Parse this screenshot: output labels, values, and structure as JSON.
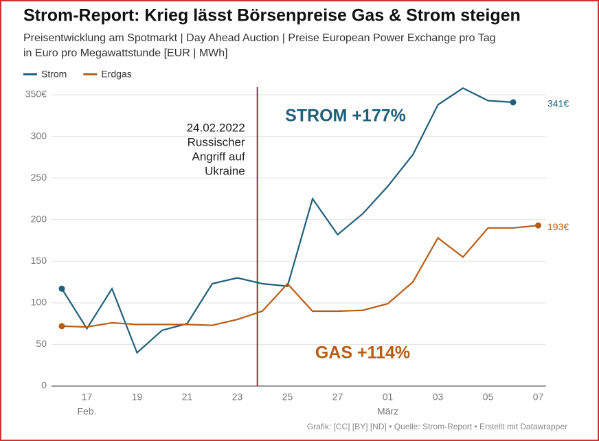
{
  "chart_data": {
    "type": "line",
    "title": "Strom-Report: Krieg lässt Börsenpreise Gas & Strom steigen",
    "subtitle": [
      "Preisentwicklung am Spotmarkt | Day Ahead Auction | Preise European Power Exchange pro Tag",
      "in Euro pro Megawattstunde [EUR | MWh]"
    ],
    "categories": [
      null,
      "17",
      null,
      "19",
      null,
      "21",
      null,
      "23",
      null,
      "25",
      null,
      "27",
      null,
      "01",
      null,
      "03",
      null,
      "05",
      null,
      "07"
    ],
    "month_labels": [
      "Feb.",
      "März"
    ],
    "series": [
      {
        "name": "Strom",
        "color": "#1f5f7a",
        "values": [
          117,
          69,
          117,
          40,
          67,
          75,
          123,
          130,
          123,
          120,
          225,
          182,
          207,
          240,
          278,
          338,
          358,
          343,
          341,
          null
        ],
        "value_labels": [
          null,
          null,
          null,
          null,
          null,
          null,
          null,
          null,
          null,
          null,
          null,
          null,
          null,
          null,
          null,
          null,
          null,
          null,
          "341€",
          null
        ]
      },
      {
        "name": "Erdgas",
        "color": "#b85c14",
        "values": [
          72,
          71,
          76,
          74,
          74,
          74,
          73,
          80,
          90,
          123,
          90,
          90,
          91,
          99,
          125,
          178,
          155,
          190,
          190,
          193
        ],
        "value_labels": [
          null,
          null,
          null,
          null,
          null,
          null,
          null,
          null,
          null,
          null,
          null,
          null,
          null,
          null,
          null,
          null,
          null,
          null,
          null,
          "193€"
        ]
      }
    ],
    "ylim": [
      0,
      350
    ],
    "yticks": [
      0,
      50,
      100,
      150,
      200,
      250,
      300,
      {
        "value": 350,
        "label": "350€"
      }
    ],
    "grid": true,
    "event": {
      "color": "#b22222",
      "lines": [
        "24.02.2022",
        "Russischer",
        "Angriff auf",
        "Ukraine"
      ]
    },
    "callouts": [
      {
        "text": "STROM +177%",
        "color": "#1f5f7a"
      },
      {
        "text": "GAS +114%",
        "color": "#b85c14"
      }
    ],
    "source": "Grafik: [CC] [BY] [ND] • Quelle: Strom-Report • Erstellt mit Datawrapper"
  }
}
